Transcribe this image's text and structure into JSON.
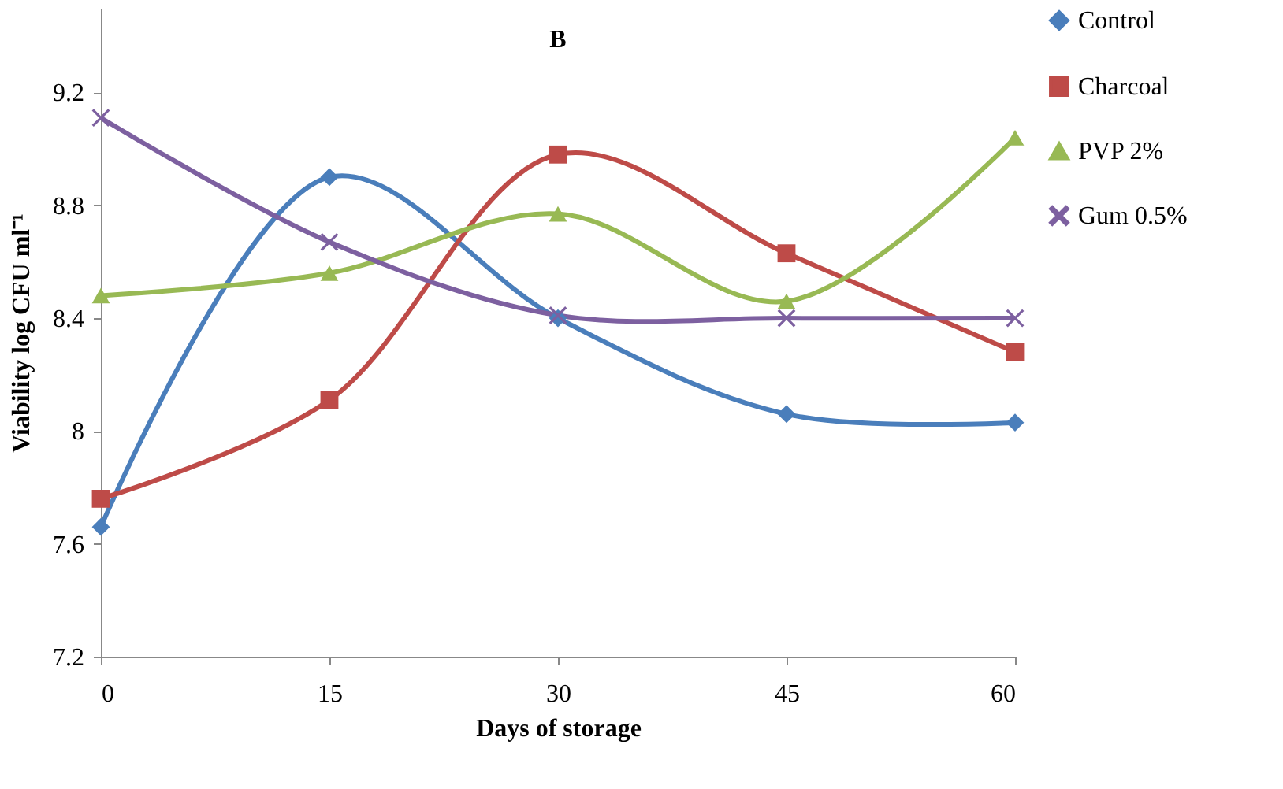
{
  "chart_data": {
    "type": "line",
    "title": "B",
    "xlabel": "Days of storage",
    "ylabel": "Viability  log CFU ml⁻¹",
    "x": [
      0,
      15,
      30,
      45,
      60
    ],
    "xlim": [
      0,
      60
    ],
    "xticks": [
      0,
      15,
      30,
      45,
      60
    ],
    "ylim": [
      7.2,
      9.5
    ],
    "yticks": [
      7.2,
      7.6,
      8,
      8.4,
      8.8,
      9.2
    ],
    "grid": false,
    "legend": "top right",
    "series": [
      {
        "name": "Control",
        "color": "#4a7ebb",
        "marker": "diamond",
        "values": [
          7.66,
          8.9,
          8.4,
          8.06,
          8.03
        ]
      },
      {
        "name": "Charcoal",
        "color": "#be4b48",
        "marker": "square",
        "values": [
          7.76,
          8.11,
          8.98,
          8.63,
          8.28
        ]
      },
      {
        "name": "PVP 2%",
        "color": "#98b954",
        "marker": "triangle",
        "values": [
          8.48,
          8.56,
          8.77,
          8.46,
          9.04
        ]
      },
      {
        "name": "Gum 0.5%",
        "color": "#7d60a0",
        "marker": "cross",
        "values": [
          9.11,
          8.67,
          8.41,
          8.4,
          8.4
        ]
      }
    ]
  }
}
